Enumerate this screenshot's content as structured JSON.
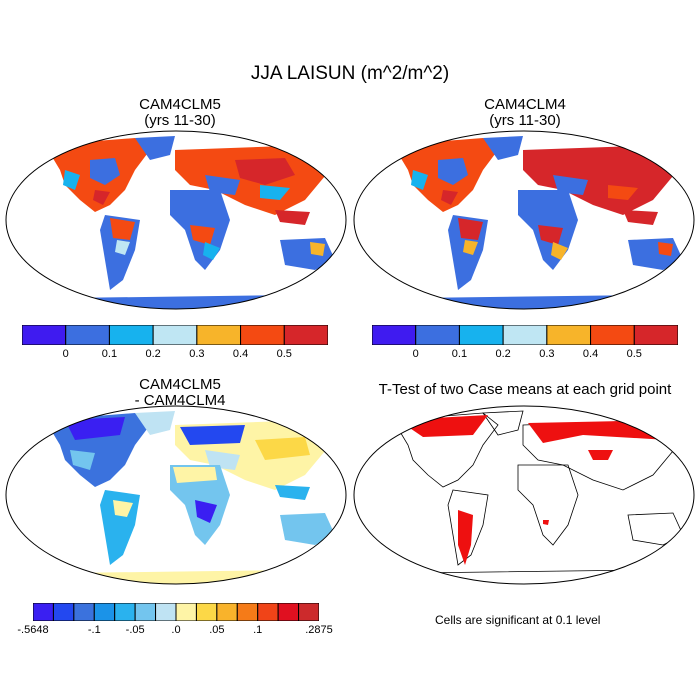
{
  "title": "JJA LAISUN (m^2/m^2)",
  "panels": {
    "top_left": {
      "title_line1": "CAM4CLM5",
      "title_line2": "(yrs 11-30)"
    },
    "top_right": {
      "title_line1": "CAM4CLM4",
      "title_line2": "(yrs 11-30)"
    },
    "bottom_left": {
      "title_line1": "CAM4CLM5",
      "title_line2": "- CAM4CLM4"
    },
    "bottom_right": {
      "title_line1": "T-Test of two Case means at each grid point"
    }
  },
  "colorbar_abs": {
    "colors": [
      "#3f1bf0",
      "#3c6fe0",
      "#17b2ee",
      "#bfe6f3",
      "#f7b42a",
      "#f44a12",
      "#d6262a"
    ],
    "labels": [
      "0",
      "0.1",
      "0.2",
      "0.3",
      "0.4",
      "0.5"
    ]
  },
  "colorbar_diff": {
    "colors": [
      "#3a1ff2",
      "#2348f0",
      "#3b72dd",
      "#1b93e8",
      "#2ab2ee",
      "#73c5ee",
      "#bfe3f3",
      "#fef4a6",
      "#fcd847",
      "#f9b32b",
      "#f57b18",
      "#f04418",
      "#e01020",
      "#cc2a2c"
    ],
    "labels": [
      "-.5648",
      "-.1",
      "-.05",
      ".0",
      ".05",
      ".1",
      ".2875"
    ]
  },
  "note": "Cells are significant at 0.1 level"
}
